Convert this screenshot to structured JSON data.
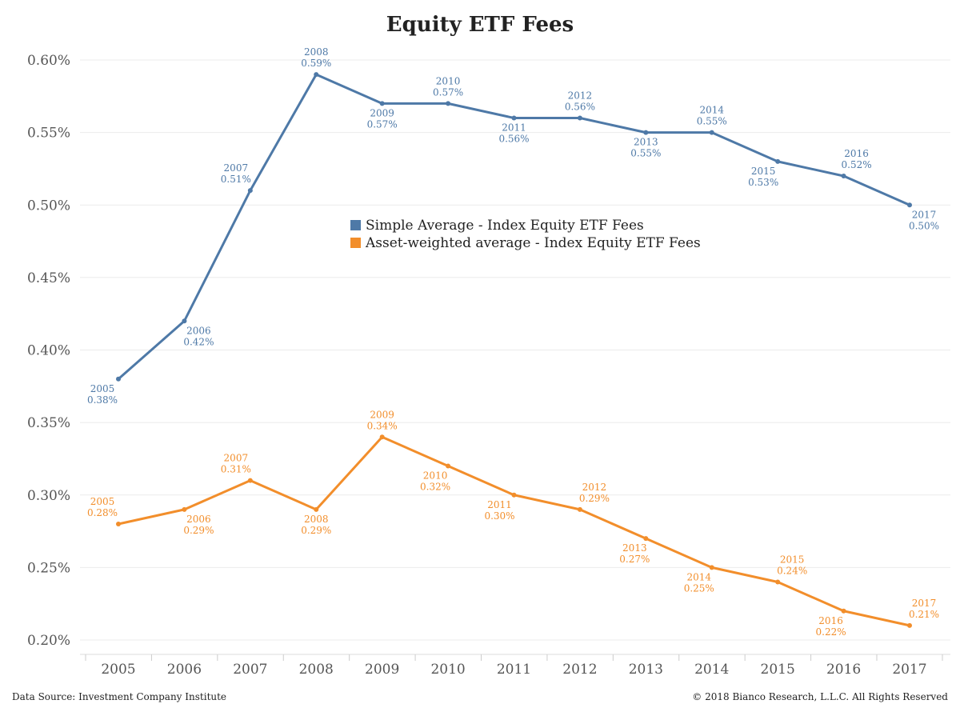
{
  "chart_data": {
    "type": "line",
    "title": "Equity ETF Fees",
    "x": [
      "2005",
      "2006",
      "2007",
      "2008",
      "2009",
      "2010",
      "2011",
      "2012",
      "2013",
      "2014",
      "2015",
      "2016",
      "2017"
    ],
    "ylim": [
      0.002,
      0.006
    ],
    "yticks": [
      "0.20%",
      "0.25%",
      "0.30%",
      "0.35%",
      "0.40%",
      "0.45%",
      "0.50%",
      "0.55%",
      "0.60%"
    ],
    "ytick_values": [
      0.002,
      0.0025,
      0.003,
      0.0035,
      0.004,
      0.0045,
      0.005,
      0.0055,
      0.006
    ],
    "grid": true,
    "legend_position": "center",
    "series": [
      {
        "name": "Simple Average - Index Equity ETF Fees",
        "color": "#4e79a7",
        "values": [
          0.0038,
          0.0042,
          0.0051,
          0.0059,
          0.0057,
          0.0057,
          0.0056,
          0.0056,
          0.0055,
          0.0055,
          0.0053,
          0.0052,
          0.005
        ],
        "labels": [
          "0.38%",
          "0.42%",
          "0.51%",
          "0.59%",
          "0.57%",
          "0.57%",
          "0.56%",
          "0.56%",
          "0.55%",
          "0.55%",
          "0.53%",
          "0.52%",
          "0.50%"
        ]
      },
      {
        "name": "Asset-weighted average - Index Equity ETF Fees",
        "color": "#f28e2b",
        "values": [
          0.0028,
          0.0029,
          0.0031,
          0.0029,
          0.0034,
          0.0032,
          0.003,
          0.0029,
          0.0027,
          0.0025,
          0.0024,
          0.0022,
          0.0021
        ],
        "labels": [
          "0.28%",
          "0.29%",
          "0.31%",
          "0.29%",
          "0.34%",
          "0.32%",
          "0.30%",
          "0.29%",
          "0.27%",
          "0.25%",
          "0.24%",
          "0.22%",
          "0.21%"
        ]
      }
    ]
  },
  "footer": {
    "source": "Data Source: Investment Company Institute",
    "copyright": "© 2018 Bianco Research, L.L.C. All Rights Reserved"
  }
}
